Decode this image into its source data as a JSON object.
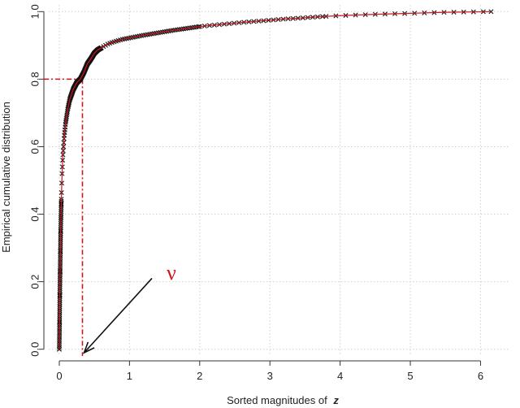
{
  "chart_data": {
    "type": "line",
    "xlabel": "Sorted magnitudes of",
    "xlabel_var": "z",
    "ylabel": "Empirical cumulative distribution",
    "xlim": [
      -0.15,
      6.4
    ],
    "ylim": [
      -0.02,
      1.02
    ],
    "xticks": [
      0,
      1,
      2,
      3,
      4,
      5,
      6
    ],
    "yticks": [
      0.0,
      0.2,
      0.4,
      0.6,
      0.8,
      1.0
    ],
    "ytick_labels": [
      "0.0",
      "0.2",
      "0.4",
      "0.6",
      "0.8",
      "1.0"
    ],
    "grid": true,
    "marker": "x",
    "colors": {
      "line": "#d0131c",
      "marker": "#111111",
      "annotation": "#d0131c",
      "grid": "#cfcfcf"
    },
    "curve": {
      "x": [
        0.0,
        0.01,
        0.02,
        0.03,
        0.04,
        0.05,
        0.07,
        0.09,
        0.12,
        0.15,
        0.2,
        0.25,
        0.3,
        0.35,
        0.4,
        0.45,
        0.5,
        0.55,
        0.6,
        0.7,
        0.8,
        0.9,
        1.0,
        1.2,
        1.4,
        1.6,
        1.8,
        2.0,
        2.3,
        2.6,
        2.9,
        3.2,
        3.5,
        3.8,
        4.1,
        4.5,
        5.0,
        5.5,
        6.15
      ],
      "y": [
        0.0,
        0.2,
        0.35,
        0.45,
        0.52,
        0.57,
        0.63,
        0.67,
        0.71,
        0.74,
        0.77,
        0.79,
        0.8,
        0.82,
        0.845,
        0.86,
        0.877,
        0.887,
        0.893,
        0.905,
        0.912,
        0.918,
        0.922,
        0.93,
        0.937,
        0.944,
        0.95,
        0.956,
        0.962,
        0.968,
        0.973,
        0.978,
        0.982,
        0.986,
        0.989,
        0.992,
        0.995,
        0.998,
        1.0
      ]
    },
    "annotations": {
      "threshold_x": 0.33,
      "threshold_y": 0.8,
      "nu_label": "ν",
      "arrow_from": [
        1.32,
        0.21
      ],
      "arrow_to": [
        0.33,
        -0.02
      ]
    }
  }
}
